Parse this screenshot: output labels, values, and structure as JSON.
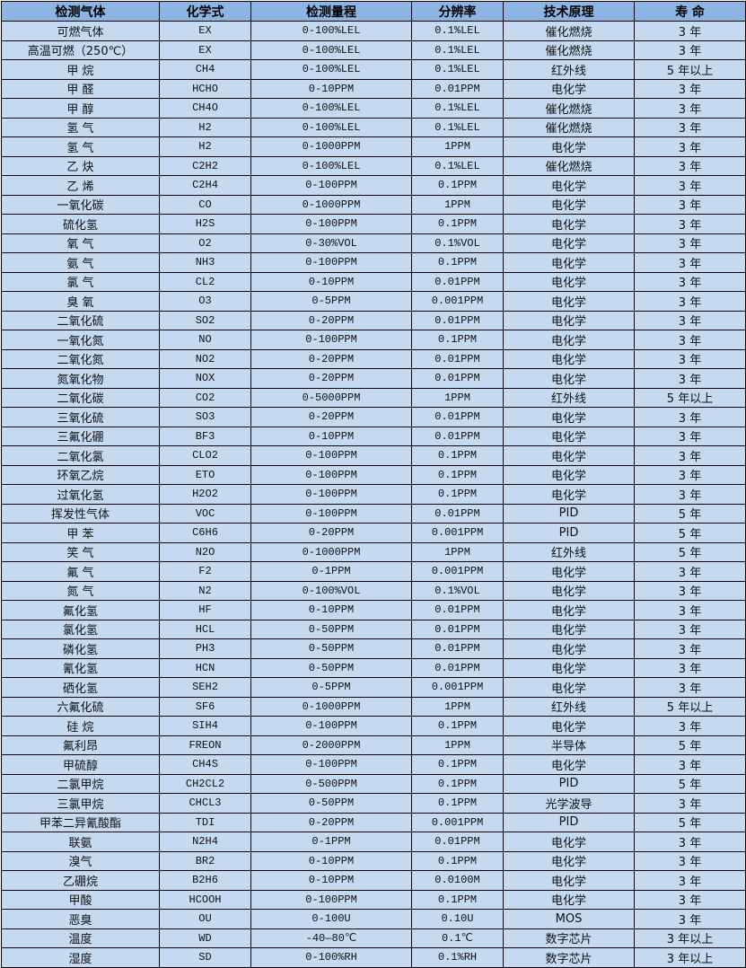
{
  "header_color": "#8db4e2",
  "row_color": "#c5d9f1",
  "columns": [
    "检测气体",
    "化学式",
    "检测量程",
    "分辨率",
    "技术原理",
    "寿 命"
  ],
  "rows": [
    [
      "可燃气体",
      "EX",
      "0-100%LEL",
      "0.1%LEL",
      "催化燃烧",
      "3 年"
    ],
    [
      "高温可燃（250℃）",
      "EX",
      "0-100%LEL",
      "0.1%LEL",
      "催化燃烧",
      "3 年"
    ],
    [
      "甲 烷",
      "CH4",
      "0-100%LEL",
      "0.1%LEL",
      "红外线",
      "5 年以上"
    ],
    [
      "甲 醛",
      "HCHO",
      "0-10PPM",
      "0.01PPM",
      "电化学",
      "3 年"
    ],
    [
      "甲 醇",
      "CH4O",
      "0-100%LEL",
      "0.1%LEL",
      "催化燃烧",
      "3 年"
    ],
    [
      "氢 气",
      "H2",
      "0-100%LEL",
      "0.1%LEL",
      "催化燃烧",
      "3 年"
    ],
    [
      "氢 气",
      "H2",
      "0-1000PPM",
      "1PPM",
      "电化学",
      "3 年"
    ],
    [
      "乙 炔",
      "C2H2",
      "0-100%LEL",
      "0.1%LEL",
      "催化燃烧",
      "3 年"
    ],
    [
      "乙 烯",
      "C2H4",
      "0-100PPM",
      "0.1PPM",
      "电化学",
      "3 年"
    ],
    [
      "一氧化碳",
      "CO",
      "0-1000PPM",
      "1PPM",
      "电化学",
      "3 年"
    ],
    [
      "硫化氢",
      "H2S",
      "0-100PPM",
      "0.1PPM",
      "电化学",
      "3 年"
    ],
    [
      "氧 气",
      "O2",
      "0-30%VOL",
      "0.1%VOL",
      "电化学",
      "3 年"
    ],
    [
      "氨 气",
      "NH3",
      "0-100PPM",
      "0.1PPM",
      "电化学",
      "3 年"
    ],
    [
      "氯 气",
      "CL2",
      "0-10PPM",
      "0.01PPM",
      "电化学",
      "3 年"
    ],
    [
      "臭 氧",
      "O3",
      "0-5PPM",
      "0.001PPM",
      "电化学",
      "3 年"
    ],
    [
      "二氧化硫",
      "SO2",
      "0-20PPM",
      "0.01PPM",
      "电化学",
      "3 年"
    ],
    [
      "一氧化氮",
      "NO",
      "0-100PPM",
      "0.1PPM",
      "电化学",
      "3 年"
    ],
    [
      "二氧化氮",
      "NO2",
      "0-20PPM",
      "0.01PPM",
      "电化学",
      "3 年"
    ],
    [
      "氮氧化物",
      "NOX",
      "0-20PPM",
      "0.01PPM",
      "电化学",
      "3 年"
    ],
    [
      "二氧化碳",
      "CO2",
      "0-5000PPM",
      "1PPM",
      "红外线",
      "5 年以上"
    ],
    [
      "三氧化硫",
      "SO3",
      "0-20PPM",
      "0.01PPM",
      "电化学",
      "3 年"
    ],
    [
      "三氟化硼",
      "BF3",
      "0-10PPM",
      "0.01PPM",
      "电化学",
      "3 年"
    ],
    [
      "二氧化氯",
      "CLO2",
      "0-100PPM",
      "0.1PPM",
      "电化学",
      "3 年"
    ],
    [
      "环氧乙烷",
      "ETO",
      "0-100PPM",
      "0.1PPM",
      "电化学",
      "3 年"
    ],
    [
      "过氧化氢",
      "H2O2",
      "0-100PPM",
      "0.1PPM",
      "电化学",
      "3 年"
    ],
    [
      "挥发性气体",
      "VOC",
      "0-100PPM",
      "0.01PPM",
      "PID",
      "5 年"
    ],
    [
      "甲 苯",
      "C6H6",
      "0-20PPM",
      "0.001PPM",
      "PID",
      "5 年"
    ],
    [
      "笑 气",
      "N2O",
      "0-1000PPM",
      "1PPM",
      "红外线",
      "5 年"
    ],
    [
      "氟 气",
      "F2",
      "0-1PPM",
      "0.001PPM",
      "电化学",
      "3 年"
    ],
    [
      "氮 气",
      "N2",
      "0-100%VOL",
      "0.1%VOL",
      "电化学",
      "3 年"
    ],
    [
      "氟化氢",
      "HF",
      "0-10PPM",
      "0.01PPM",
      "电化学",
      "3 年"
    ],
    [
      "氯化氢",
      "HCL",
      "0-50PPM",
      "0.01PPM",
      "电化学",
      "3 年"
    ],
    [
      "磷化氢",
      "PH3",
      "0-50PPM",
      "0.01PPM",
      "电化学",
      "3 年"
    ],
    [
      "氰化氢",
      "HCN",
      "0-50PPM",
      "0.01PPM",
      "电化学",
      "3 年"
    ],
    [
      "硒化氢",
      "SEH2",
      "0-5PPM",
      "0.001PPM",
      "电化学",
      "3 年"
    ],
    [
      "六氟化硫",
      "SF6",
      "0-1000PPM",
      "1PPM",
      "红外线",
      "5 年以上"
    ],
    [
      "硅 烷",
      "SIH4",
      "0-100PPM",
      "0.1PPM",
      "电化学",
      "3 年"
    ],
    [
      "氟利昂",
      "FREON",
      "0-2000PPM",
      "1PPM",
      "半导体",
      "5 年"
    ],
    [
      "甲硫醇",
      "CH4S",
      "0-100PPM",
      "0.1PPM",
      "电化学",
      "3 年"
    ],
    [
      "二氯甲烷",
      "CH2CL2",
      "0-500PPM",
      "0.1PPM",
      "PID",
      "5 年"
    ],
    [
      "三氯甲烷",
      "CHCL3",
      "0-50PPM",
      "0.1PPM",
      "光学波导",
      "3 年"
    ],
    [
      "甲苯二异氰酸酯",
      "TDI",
      "0-20PPM",
      "0.001PPM",
      "PID",
      "5 年"
    ],
    [
      "联氨",
      "N2H4",
      "0-1PPM",
      "0.01PPM",
      "电化学",
      "3 年"
    ],
    [
      "溴气",
      "BR2",
      "0-10PPM",
      "0.1PPM",
      "电化学",
      "3 年"
    ],
    [
      "乙硼烷",
      "B2H6",
      "0-10PPM",
      "0.0100M",
      "电化学",
      "3 年"
    ],
    [
      "甲酸",
      "HCOOH",
      "0-100PPM",
      "0.1PPM",
      "电化学",
      "3 年"
    ],
    [
      "恶臭",
      "OU",
      "0-100U",
      "0.10U",
      "MOS",
      "3 年"
    ],
    [
      "温度",
      "WD",
      "-40—80℃",
      "0.1℃",
      "数字芯片",
      "3 年以上"
    ],
    [
      "湿度",
      "SD",
      "0-100%RH",
      "0.1%RH",
      "数字芯片",
      "3 年以上"
    ]
  ]
}
